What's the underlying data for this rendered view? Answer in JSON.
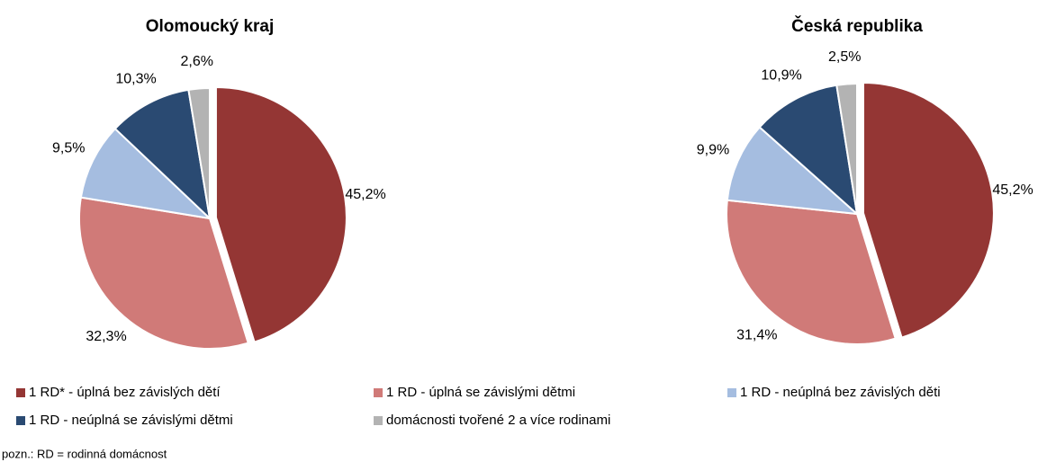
{
  "chart_data": [
    {
      "type": "pie",
      "title": "Olomoucký kraj",
      "values": [
        45.2,
        32.3,
        9.5,
        10.3,
        2.6
      ],
      "value_labels": [
        "45,2%",
        "32,3%",
        "9,5%",
        "10,3%",
        "2,6%"
      ],
      "colors": [
        "#943634",
        "#d07a78",
        "#a5bde0",
        "#2a4a72",
        "#b3b3b3"
      ]
    },
    {
      "type": "pie",
      "title": "Česká republika",
      "values": [
        45.2,
        31.4,
        9.9,
        10.9,
        2.5
      ],
      "value_labels": [
        "45,2%",
        "31,4%",
        "9,9%",
        "10,9%",
        "2,5%"
      ],
      "colors": [
        "#943634",
        "#d07a78",
        "#a5bde0",
        "#2a4a72",
        "#b3b3b3"
      ]
    }
  ],
  "legend": [
    "1 RD* - úplná bez závislých dětí",
    "1 RD - úplná se závislými dětmi",
    "1 RD - neúplná bez závislých děti",
    "1 RD - neúplná se závislými dětmi",
    "domácnosti tvořené 2 a více rodinami"
  ],
  "note": "pozn.: RD = rodinná  domácnost"
}
